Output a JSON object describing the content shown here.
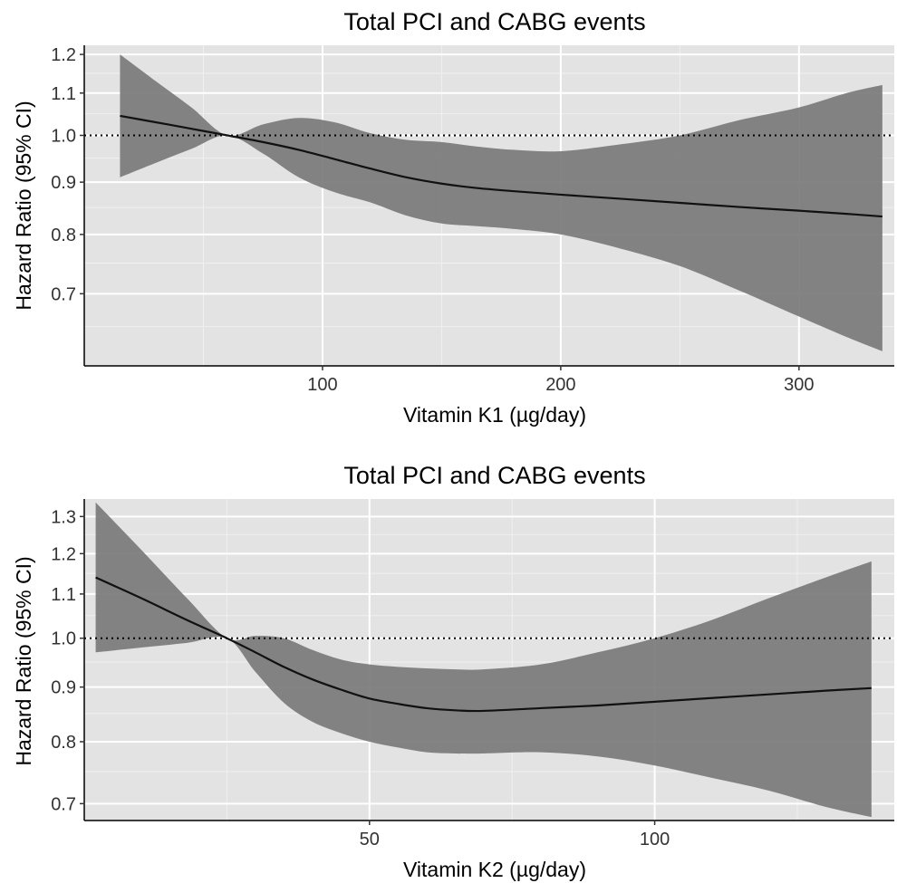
{
  "chart_data": [
    {
      "type": "line",
      "title": "Total PCI and CABG events",
      "xlabel": "Vitamin K1 (µg/day)",
      "ylabel": "Hazard Ratio (95% CI)",
      "y_scale": "log",
      "xlim": [
        0,
        340
      ],
      "ylim": [
        0.595,
        1.225
      ],
      "x_ticks": [
        100,
        200,
        300
      ],
      "x_tick_labels": [
        "100",
        "200",
        "300"
      ],
      "y_ticks": [
        0.7,
        0.8,
        0.9,
        1.0,
        1.1,
        1.2
      ],
      "y_tick_labels": [
        "0.7",
        "0.8",
        "0.9",
        "1.0",
        "1.1",
        "1.2"
      ],
      "reference_line": 1.0,
      "grid": true,
      "series": [
        {
          "x": [
            15,
            30,
            45,
            60,
            75,
            90,
            105,
            120,
            135,
            150,
            165,
            180,
            200,
            225,
            250,
            275,
            300,
            320,
            335
          ],
          "y": [
            1.045,
            1.03,
            1.015,
            1.0,
            0.985,
            0.968,
            0.948,
            0.928,
            0.91,
            0.897,
            0.888,
            0.882,
            0.875,
            0.867,
            0.859,
            0.851,
            0.844,
            0.838,
            0.833
          ],
          "lower": [
            0.91,
            0.94,
            0.97,
            1.0,
            0.96,
            0.91,
            0.88,
            0.86,
            0.835,
            0.82,
            0.815,
            0.81,
            0.8,
            0.775,
            0.745,
            0.705,
            0.665,
            0.635,
            0.615
          ],
          "upper": [
            1.2,
            1.13,
            1.065,
            1.0,
            1.025,
            1.04,
            1.03,
            1.005,
            0.99,
            0.985,
            0.975,
            0.968,
            0.965,
            0.98,
            1.0,
            1.035,
            1.065,
            1.1,
            1.12
          ]
        }
      ]
    },
    {
      "type": "line",
      "title": "Total PCI and CABG events",
      "xlabel": "Vitamin K2 (µg/day)",
      "ylabel": "Hazard Ratio (95% CI)",
      "y_scale": "log",
      "xlim": [
        0,
        142
      ],
      "ylim": [
        0.675,
        1.35
      ],
      "x_ticks": [
        50,
        100
      ],
      "x_tick_labels": [
        "50",
        "100"
      ],
      "y_ticks": [
        0.7,
        0.8,
        0.9,
        1.0,
        1.1,
        1.2,
        1.3
      ],
      "y_tick_labels": [
        "0.7",
        "0.8",
        "0.9",
        "1.0",
        "1.1",
        "1.2",
        "1.3"
      ],
      "reference_line": 1.0,
      "grid": true,
      "series": [
        {
          "x": [
            2,
            10,
            18,
            25,
            30,
            35,
            40,
            45,
            50,
            55,
            60,
            65,
            70,
            80,
            90,
            100,
            110,
            120,
            130,
            138
          ],
          "y": [
            1.14,
            1.09,
            1.04,
            1.0,
            0.97,
            0.94,
            0.915,
            0.895,
            0.878,
            0.868,
            0.86,
            0.856,
            0.855,
            0.86,
            0.865,
            0.872,
            0.879,
            0.886,
            0.893,
            0.898
          ],
          "lower": [
            0.97,
            0.98,
            0.99,
            1.0,
            0.93,
            0.87,
            0.835,
            0.815,
            0.8,
            0.79,
            0.782,
            0.78,
            0.78,
            0.782,
            0.775,
            0.76,
            0.74,
            0.72,
            0.695,
            0.68
          ],
          "upper": [
            1.34,
            1.21,
            1.09,
            1.0,
            1.005,
            1.0,
            0.975,
            0.955,
            0.945,
            0.94,
            0.937,
            0.935,
            0.935,
            0.945,
            0.97,
            1.0,
            1.04,
            1.09,
            1.14,
            1.18
          ]
        }
      ]
    }
  ]
}
